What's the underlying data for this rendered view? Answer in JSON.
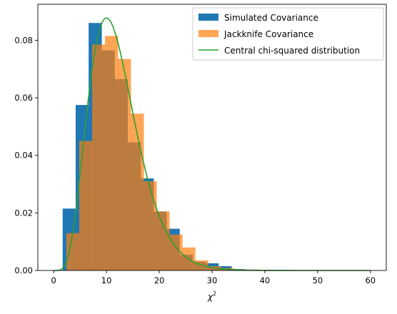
{
  "chart_data": {
    "type": "bar",
    "title": "",
    "xlabel": "χ",
    "xlabel_superscript": "2",
    "ylabel": "",
    "xlim": [
      -3,
      63
    ],
    "ylim": [
      0,
      0.0925
    ],
    "xticks": [
      0,
      10,
      20,
      30,
      40,
      50,
      60
    ],
    "yticks": [
      0.0,
      0.02,
      0.04,
      0.06,
      0.08
    ],
    "ytick_labels": [
      "0.00",
      "0.02",
      "0.04",
      "0.06",
      "0.08"
    ],
    "legend_position": "top-right",
    "series": [
      {
        "name": "Simulated Covariance",
        "type": "histogram",
        "color": "#1f77b4",
        "bin_width": 2.46,
        "bins": [
          {
            "x": 1.7,
            "y": 0.0215
          },
          {
            "x": 4.16,
            "y": 0.0575
          },
          {
            "x": 6.62,
            "y": 0.086
          },
          {
            "x": 9.08,
            "y": 0.0765
          },
          {
            "x": 11.54,
            "y": 0.0665
          },
          {
            "x": 14.0,
            "y": 0.0445
          },
          {
            "x": 16.46,
            "y": 0.032
          },
          {
            "x": 18.92,
            "y": 0.0205
          },
          {
            "x": 21.38,
            "y": 0.0145
          },
          {
            "x": 23.84,
            "y": 0.0055
          },
          {
            "x": 26.3,
            "y": 0.003
          },
          {
            "x": 28.76,
            "y": 0.0025
          },
          {
            "x": 31.22,
            "y": 0.0015
          },
          {
            "x": 33.68,
            "y": 0.0005
          },
          {
            "x": 36.14,
            "y": 0.0003
          },
          {
            "x": 38.6,
            "y": 0.0002
          }
        ]
      },
      {
        "name": "Jackknife Covariance",
        "type": "histogram",
        "color": "#ff7f0e",
        "opacity": 0.7,
        "bin_width": 2.44,
        "bins": [
          {
            "x": 2.4,
            "y": 0.013
          },
          {
            "x": 4.84,
            "y": 0.045
          },
          {
            "x": 7.28,
            "y": 0.0785
          },
          {
            "x": 9.72,
            "y": 0.0815
          },
          {
            "x": 12.16,
            "y": 0.0735
          },
          {
            "x": 14.6,
            "y": 0.0545
          },
          {
            "x": 17.04,
            "y": 0.031
          },
          {
            "x": 19.48,
            "y": 0.0205
          },
          {
            "x": 21.92,
            "y": 0.0125
          },
          {
            "x": 24.36,
            "y": 0.008
          },
          {
            "x": 26.8,
            "y": 0.0035
          },
          {
            "x": 29.24,
            "y": 0.0015
          },
          {
            "x": 31.68,
            "y": 0.0008
          },
          {
            "x": 34.12,
            "y": 0.0004
          },
          {
            "x": 36.56,
            "y": 0.0003
          },
          {
            "x": 39.0,
            "y": 0.0002
          }
        ]
      },
      {
        "name": "Central chi-squared distribution",
        "type": "line",
        "color": "#2ca02c",
        "dof": 12,
        "x_range": [
          0,
          60
        ]
      }
    ]
  }
}
